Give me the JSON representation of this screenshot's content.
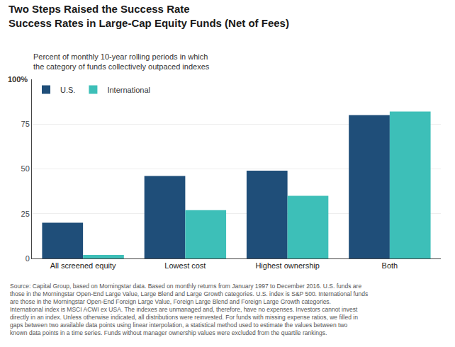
{
  "chart_data": {
    "type": "bar",
    "title": "Two Steps Raised the Success Rate",
    "subtitle": "Success Rates in Large-Cap Equity Funds (Net of Fees)",
    "annotations": [
      "100%",
      "Percent of monthly 10-year rolling periods in which\nthe category of funds collectively outpaced indexes"
    ],
    "footnote": [
      "Source: Capital Group, based on Morningstar data. Based on monthly returns from January 1997 to December 2016. U.S. funds are",
      "those in the Morningstar Open-End Large Value, Large Blend and Large Growth categories. U.S. index is S&P 500. International funds",
      "are those in the Morningstar Open-End Foreign Large Value, Foreign Large Blend and Foreign Large Growth categories.",
      "International index is MSCI ACWI ex USA. The indexes are unmanaged and, therefore, have no expenses. Investors cannot invest",
      "directly in an index. Unless otherwise indicated, all distributions were reinvested. For funds with missing expense ratios, we filled in",
      "gaps between two available data points using linear interpolation, a statistical method used to estimate the values between two",
      "known data points in a time series. Funds without manager ownership values were excluded from the quartile rankings."
    ],
    "categories": [
      "All screened equity",
      "Lowest cost",
      "Highest ownership",
      "Both"
    ],
    "series": [
      {
        "name": "U.S.",
        "color": "#1f4e79",
        "values": [
          20,
          46,
          49,
          80
        ]
      },
      {
        "name": "International",
        "color": "#3dbfb8",
        "values": [
          2,
          27,
          35,
          82
        ]
      }
    ],
    "ylim": [
      0,
      100
    ],
    "yticks": [
      0,
      25,
      50,
      75
    ],
    "grid": true,
    "legend": "upper left"
  }
}
